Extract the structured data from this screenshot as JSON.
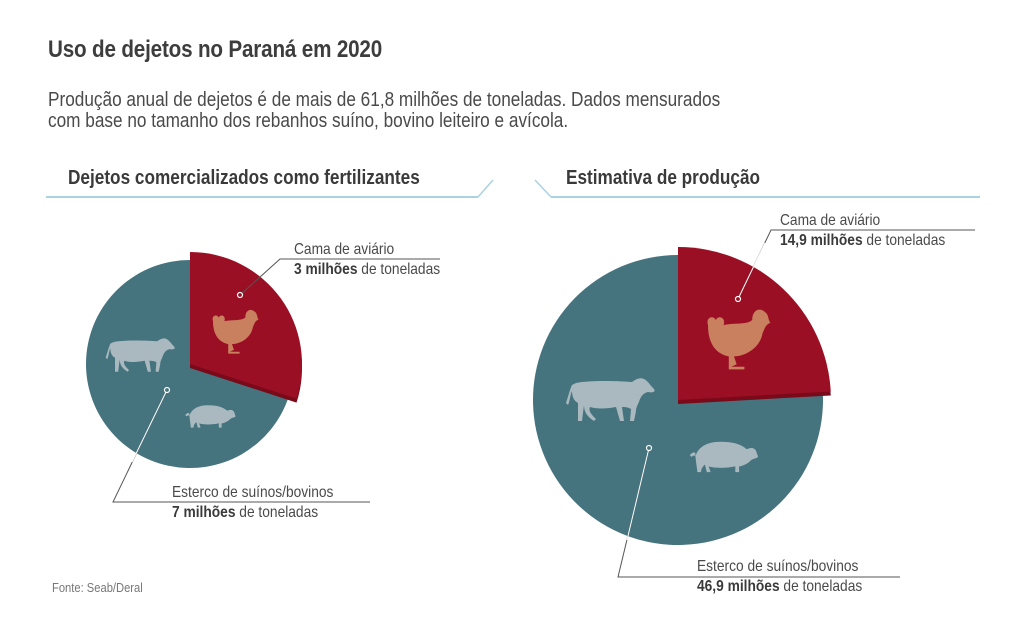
{
  "header": {
    "title": "Uso de dejetos no Paraná em 2020",
    "subtitle_line1": "Produção anual de dejetos é de mais de 61,8 milhões de toneladas. Dados mensurados",
    "subtitle_line2": "com base no tamanho dos rebanhos suíno, bovino leiteiro e avícola."
  },
  "colors": {
    "poultry": "#9b0f24",
    "poultry_edge": "#7a0a1a",
    "manure": "#45737e",
    "icon_poultry": "#c8805f",
    "icon_livestock": "#a9b9bf",
    "rule": "#a9d3e2"
  },
  "chart_data": [
    {
      "type": "pie",
      "title": "Dejetos comercializados como fertilizantes",
      "unit": "milhões de toneladas",
      "slices": [
        {
          "name": "Cama de aviário",
          "value": 3,
          "value_label": "3 milhões",
          "suffix": "de toneladas",
          "icon": "chicken-icon"
        },
        {
          "name": "Esterco de suínos/bovinos",
          "value": 7,
          "value_label": "7 milhões",
          "suffix": "de toneladas",
          "icons": [
            "cow-icon",
            "pig-icon"
          ]
        }
      ]
    },
    {
      "type": "pie",
      "title": "Estimativa de produção",
      "unit": "milhões de toneladas",
      "slices": [
        {
          "name": "Cama de aviário",
          "value": 14.9,
          "value_label": "14,9 milhões",
          "suffix": "de toneladas",
          "icon": "chicken-icon"
        },
        {
          "name": "Esterco de suínos/bovinos",
          "value": 46.9,
          "value_label": "46,9 milhões",
          "suffix": "de toneladas",
          "icons": [
            "cow-icon",
            "pig-icon"
          ]
        }
      ]
    }
  ],
  "footer": {
    "source": "Fonte: Seab/Deral"
  }
}
